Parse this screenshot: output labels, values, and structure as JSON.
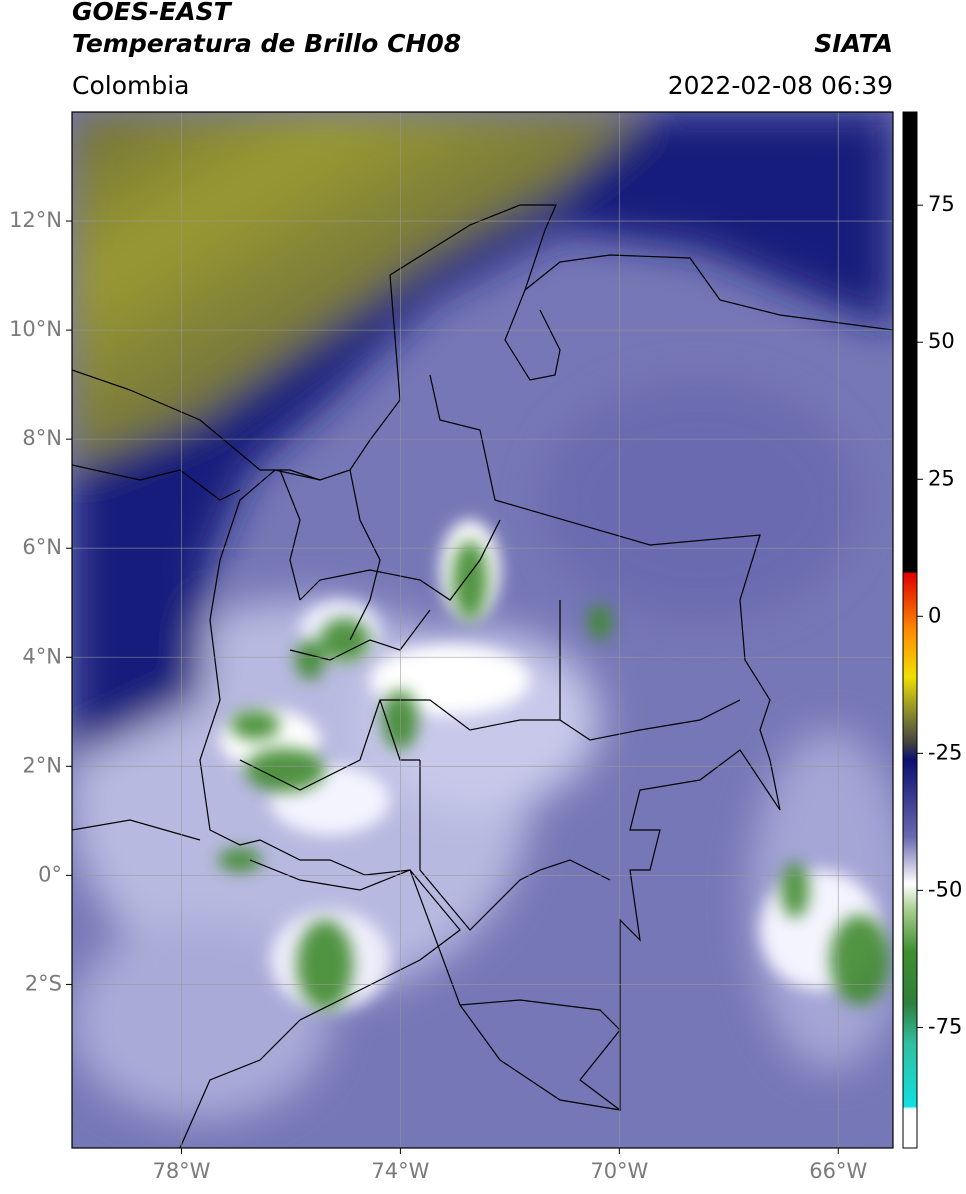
{
  "header": {
    "satellite": "GOES-EAST",
    "product": "Temperatura de Brillo CH08",
    "source": "SIATA",
    "region": "Colombia",
    "datetime": "2022-02-08 06:39"
  },
  "map": {
    "xlim": [
      -80,
      -65
    ],
    "ylim": [
      -5,
      14
    ],
    "grid": true,
    "xticks": [
      {
        "value": -78,
        "label": "78°W"
      },
      {
        "value": -74,
        "label": "74°W"
      },
      {
        "value": -70,
        "label": "70°W"
      },
      {
        "value": -66,
        "label": "66°W"
      }
    ],
    "yticks": [
      {
        "value": -2,
        "label": "2°S"
      },
      {
        "value": 0,
        "label": "0°"
      },
      {
        "value": 2,
        "label": "2°N"
      },
      {
        "value": 4,
        "label": "4°N"
      },
      {
        "value": 6,
        "label": "6°N"
      },
      {
        "value": 8,
        "label": "8°N"
      },
      {
        "value": 10,
        "label": "10°N"
      },
      {
        "value": 12,
        "label": "12°N"
      }
    ]
  },
  "colorbar": {
    "clim": [
      -97,
      92
    ],
    "ticks": [
      -75,
      -50,
      -25,
      0,
      25,
      50,
      75
    ]
  }
}
